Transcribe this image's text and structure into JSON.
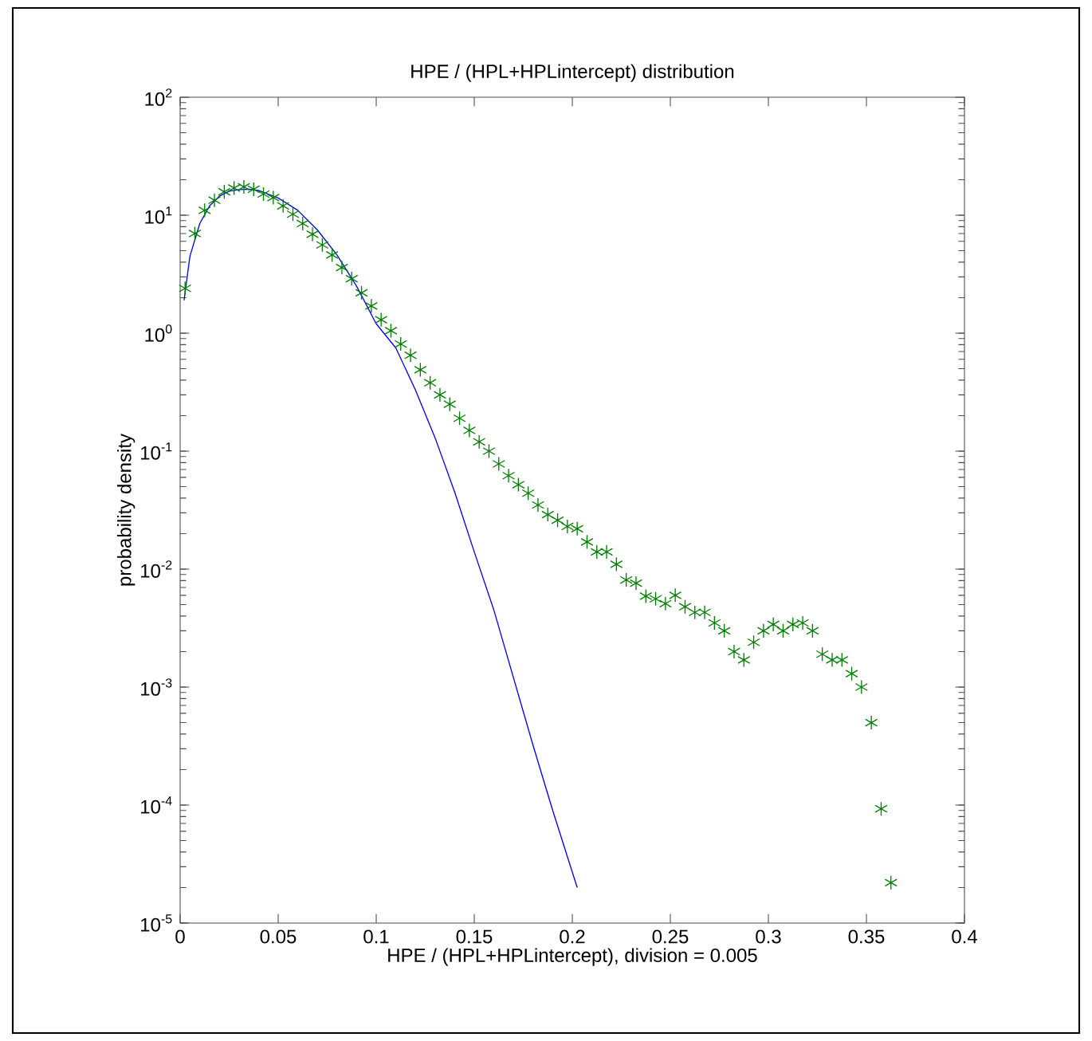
{
  "chart_data": {
    "type": "scatter",
    "title": "HPE / (HPL+HPLintercept) distribution",
    "xlabel": "HPE / (HPL+HPLintercept), division = 0.005",
    "ylabel": "probability density",
    "log": "y",
    "xlim": [
      0,
      0.4
    ],
    "ylim": [
      1e-05,
      100
    ],
    "xticks": [
      0,
      0.05,
      0.1,
      0.15,
      0.2,
      0.25,
      0.3,
      0.35,
      0.4
    ],
    "yticks": [
      {
        "value": 1e-05,
        "label": "10$^{-5}$"
      },
      {
        "value": 0.0001,
        "label": "10$^{-4}$"
      },
      {
        "value": 0.001,
        "label": "10$^{-3}$"
      },
      {
        "value": 0.01,
        "label": "10$^{-2}$"
      },
      {
        "value": 0.1,
        "label": "10$^{-1}$"
      },
      {
        "value": 1,
        "label": "10$^{0}$"
      },
      {
        "value": 10,
        "label": "10$^{1}$"
      },
      {
        "value": 100,
        "label": "10$^{2}$"
      }
    ],
    "series": [
      {
        "type": "scatter",
        "color": "#008000",
        "marker": "cross",
        "x": [
          0.0025,
          0.0075,
          0.0125,
          0.0175,
          0.0225,
          0.0275,
          0.0325,
          0.0375,
          0.0425,
          0.0475,
          0.0525,
          0.0575,
          0.0625,
          0.0675,
          0.0725,
          0.0775,
          0.0825,
          0.0875,
          0.0925,
          0.0975,
          0.1025,
          0.1075,
          0.1125,
          0.1175,
          0.1225,
          0.1275,
          0.1325,
          0.1375,
          0.1425,
          0.1475,
          0.1525,
          0.1575,
          0.1625,
          0.1675,
          0.1725,
          0.1775,
          0.1825,
          0.1875,
          0.1925,
          0.1975,
          0.2025,
          0.2075,
          0.2125,
          0.2175,
          0.2225,
          0.2275,
          0.2325,
          0.2375,
          0.2425,
          0.2475,
          0.2525,
          0.2575,
          0.2625,
          0.2675,
          0.2725,
          0.2775,
          0.2825,
          0.2875,
          0.2925,
          0.2975,
          0.3025,
          0.3075,
          0.3125,
          0.3175,
          0.3225,
          0.3275,
          0.3325,
          0.3375,
          0.3425,
          0.3475,
          0.3525,
          0.3575,
          0.3625
        ],
        "values": [
          2.4,
          7,
          11,
          13.4,
          15.8,
          17,
          17.4,
          16.6,
          15.1,
          14.1,
          12,
          10.2,
          8.5,
          6.9,
          5.6,
          4.6,
          3.6,
          2.9,
          2.2,
          1.7,
          1.3,
          1.05,
          0.81,
          0.65,
          0.49,
          0.38,
          0.3,
          0.25,
          0.19,
          0.15,
          0.12,
          0.1,
          0.078,
          0.062,
          0.052,
          0.044,
          0.035,
          0.029,
          0.026,
          0.023,
          0.022,
          0.017,
          0.014,
          0.014,
          0.011,
          0.0081,
          0.0076,
          0.0059,
          0.0056,
          0.0051,
          0.006,
          0.0048,
          0.0043,
          0.0043,
          0.0035,
          0.003,
          0.002,
          0.0017,
          0.0024,
          0.003,
          0.0034,
          0.003,
          0.0034,
          0.0035,
          0.003,
          0.0019,
          0.0017,
          0.0017,
          0.0013,
          0.001,
          0.0005,
          9.3e-05,
          2.2e-05
        ]
      },
      {
        "type": "line",
        "color": "#0000ff",
        "marker": "none",
        "x": [
          0.002,
          0.005,
          0.01,
          0.015,
          0.02,
          0.025,
          0.03,
          0.035,
          0.04,
          0.05,
          0.06,
          0.07,
          0.08,
          0.09,
          0.1,
          0.11,
          0.12,
          0.13,
          0.14,
          0.15,
          0.16,
          0.17,
          0.18,
          0.19,
          0.2025
        ],
        "values": [
          1.9,
          4.5,
          8.5,
          12,
          14.5,
          16,
          16.5,
          16.6,
          16.2,
          14,
          11,
          7.5,
          4.6,
          2.5,
          1.2,
          0.75,
          0.33,
          0.13,
          0.045,
          0.014,
          0.0045,
          0.0012,
          0.00032,
          9e-05,
          2e-05
        ]
      }
    ]
  }
}
